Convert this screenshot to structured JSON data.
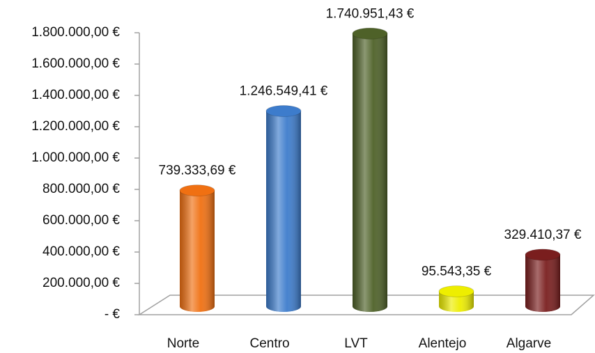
{
  "chart_data": {
    "type": "bar3d",
    "categories": [
      "Norte",
      "Centro",
      "LVT",
      "Alentejo",
      "Algarve"
    ],
    "values": [
      739333.69,
      1246549.41,
      1740951.43,
      95543.35,
      329410.37
    ],
    "value_labels": [
      "739.333,69 €",
      "1.246.549,41 €",
      "1.740.951,43 €",
      "95.543,35 €",
      "329.410,37 €"
    ],
    "colors": [
      "#f07012",
      "#3d7ccc",
      "#4e6128",
      "#eeee00",
      "#7a1e1e"
    ],
    "ylim": [
      0,
      1800000
    ],
    "yticks": [
      {
        "value": 0,
        "label": "-  €"
      },
      {
        "value": 200000,
        "label": "200.000,00 €"
      },
      {
        "value": 400000,
        "label": "400.000,00 €"
      },
      {
        "value": 600000,
        "label": "600.000,00 €"
      },
      {
        "value": 800000,
        "label": "800.000,00 €"
      },
      {
        "value": 1000000,
        "label": "1.000.000,00 €"
      },
      {
        "value": 1200000,
        "label": "1.200.000,00 €"
      },
      {
        "value": 1400000,
        "label": "1.400.000,00 €"
      },
      {
        "value": 1600000,
        "label": "1.600.000,00 €"
      },
      {
        "value": 1800000,
        "label": "1.800.000,00 €"
      }
    ]
  }
}
